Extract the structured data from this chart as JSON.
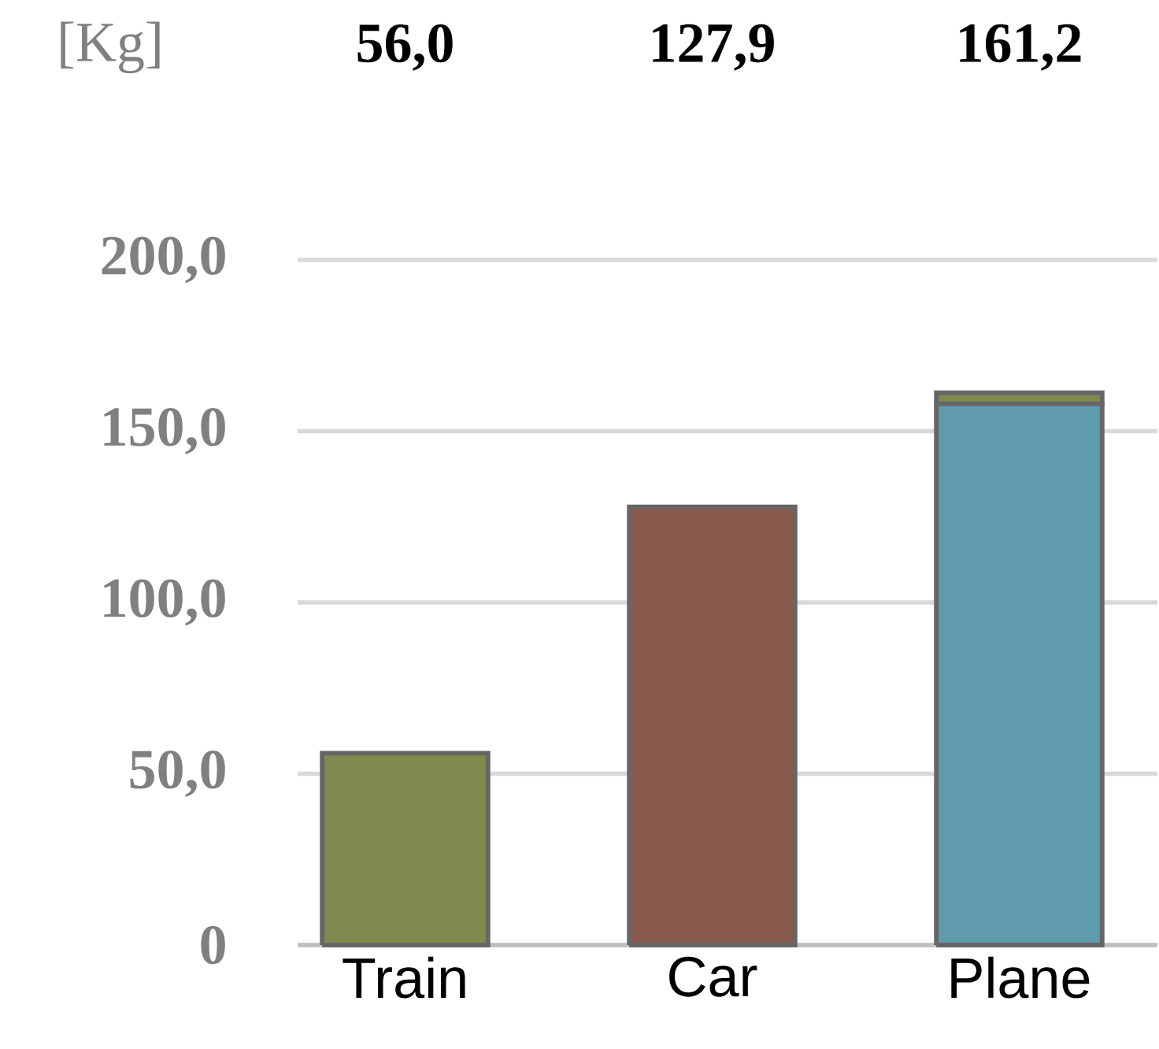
{
  "chart_data": {
    "type": "bar",
    "stacked": true,
    "ylabel": "[Kg]",
    "categories": [
      "Train",
      "Car",
      "Plane"
    ],
    "series": [
      {
        "color": "#5f9aad",
        "values": [
          null,
          null,
          158.0
        ]
      },
      {
        "color": "#8b5a4e",
        "values": [
          null,
          127.9,
          null
        ]
      },
      {
        "color": "#7f8a4e",
        "values": [
          56.0,
          null,
          3.2
        ]
      }
    ],
    "annotations": [
      "56,0",
      "127,9",
      "161,2"
    ],
    "ylim": [
      0,
      200
    ],
    "yticks": [
      0,
      {
        "value": 50,
        "label": "50,0"
      },
      {
        "value": 100,
        "label": "100,0"
      },
      {
        "value": 150,
        "label": "150,0"
      },
      {
        "value": 200,
        "label": "200,0"
      }
    ],
    "grid": "y"
  }
}
